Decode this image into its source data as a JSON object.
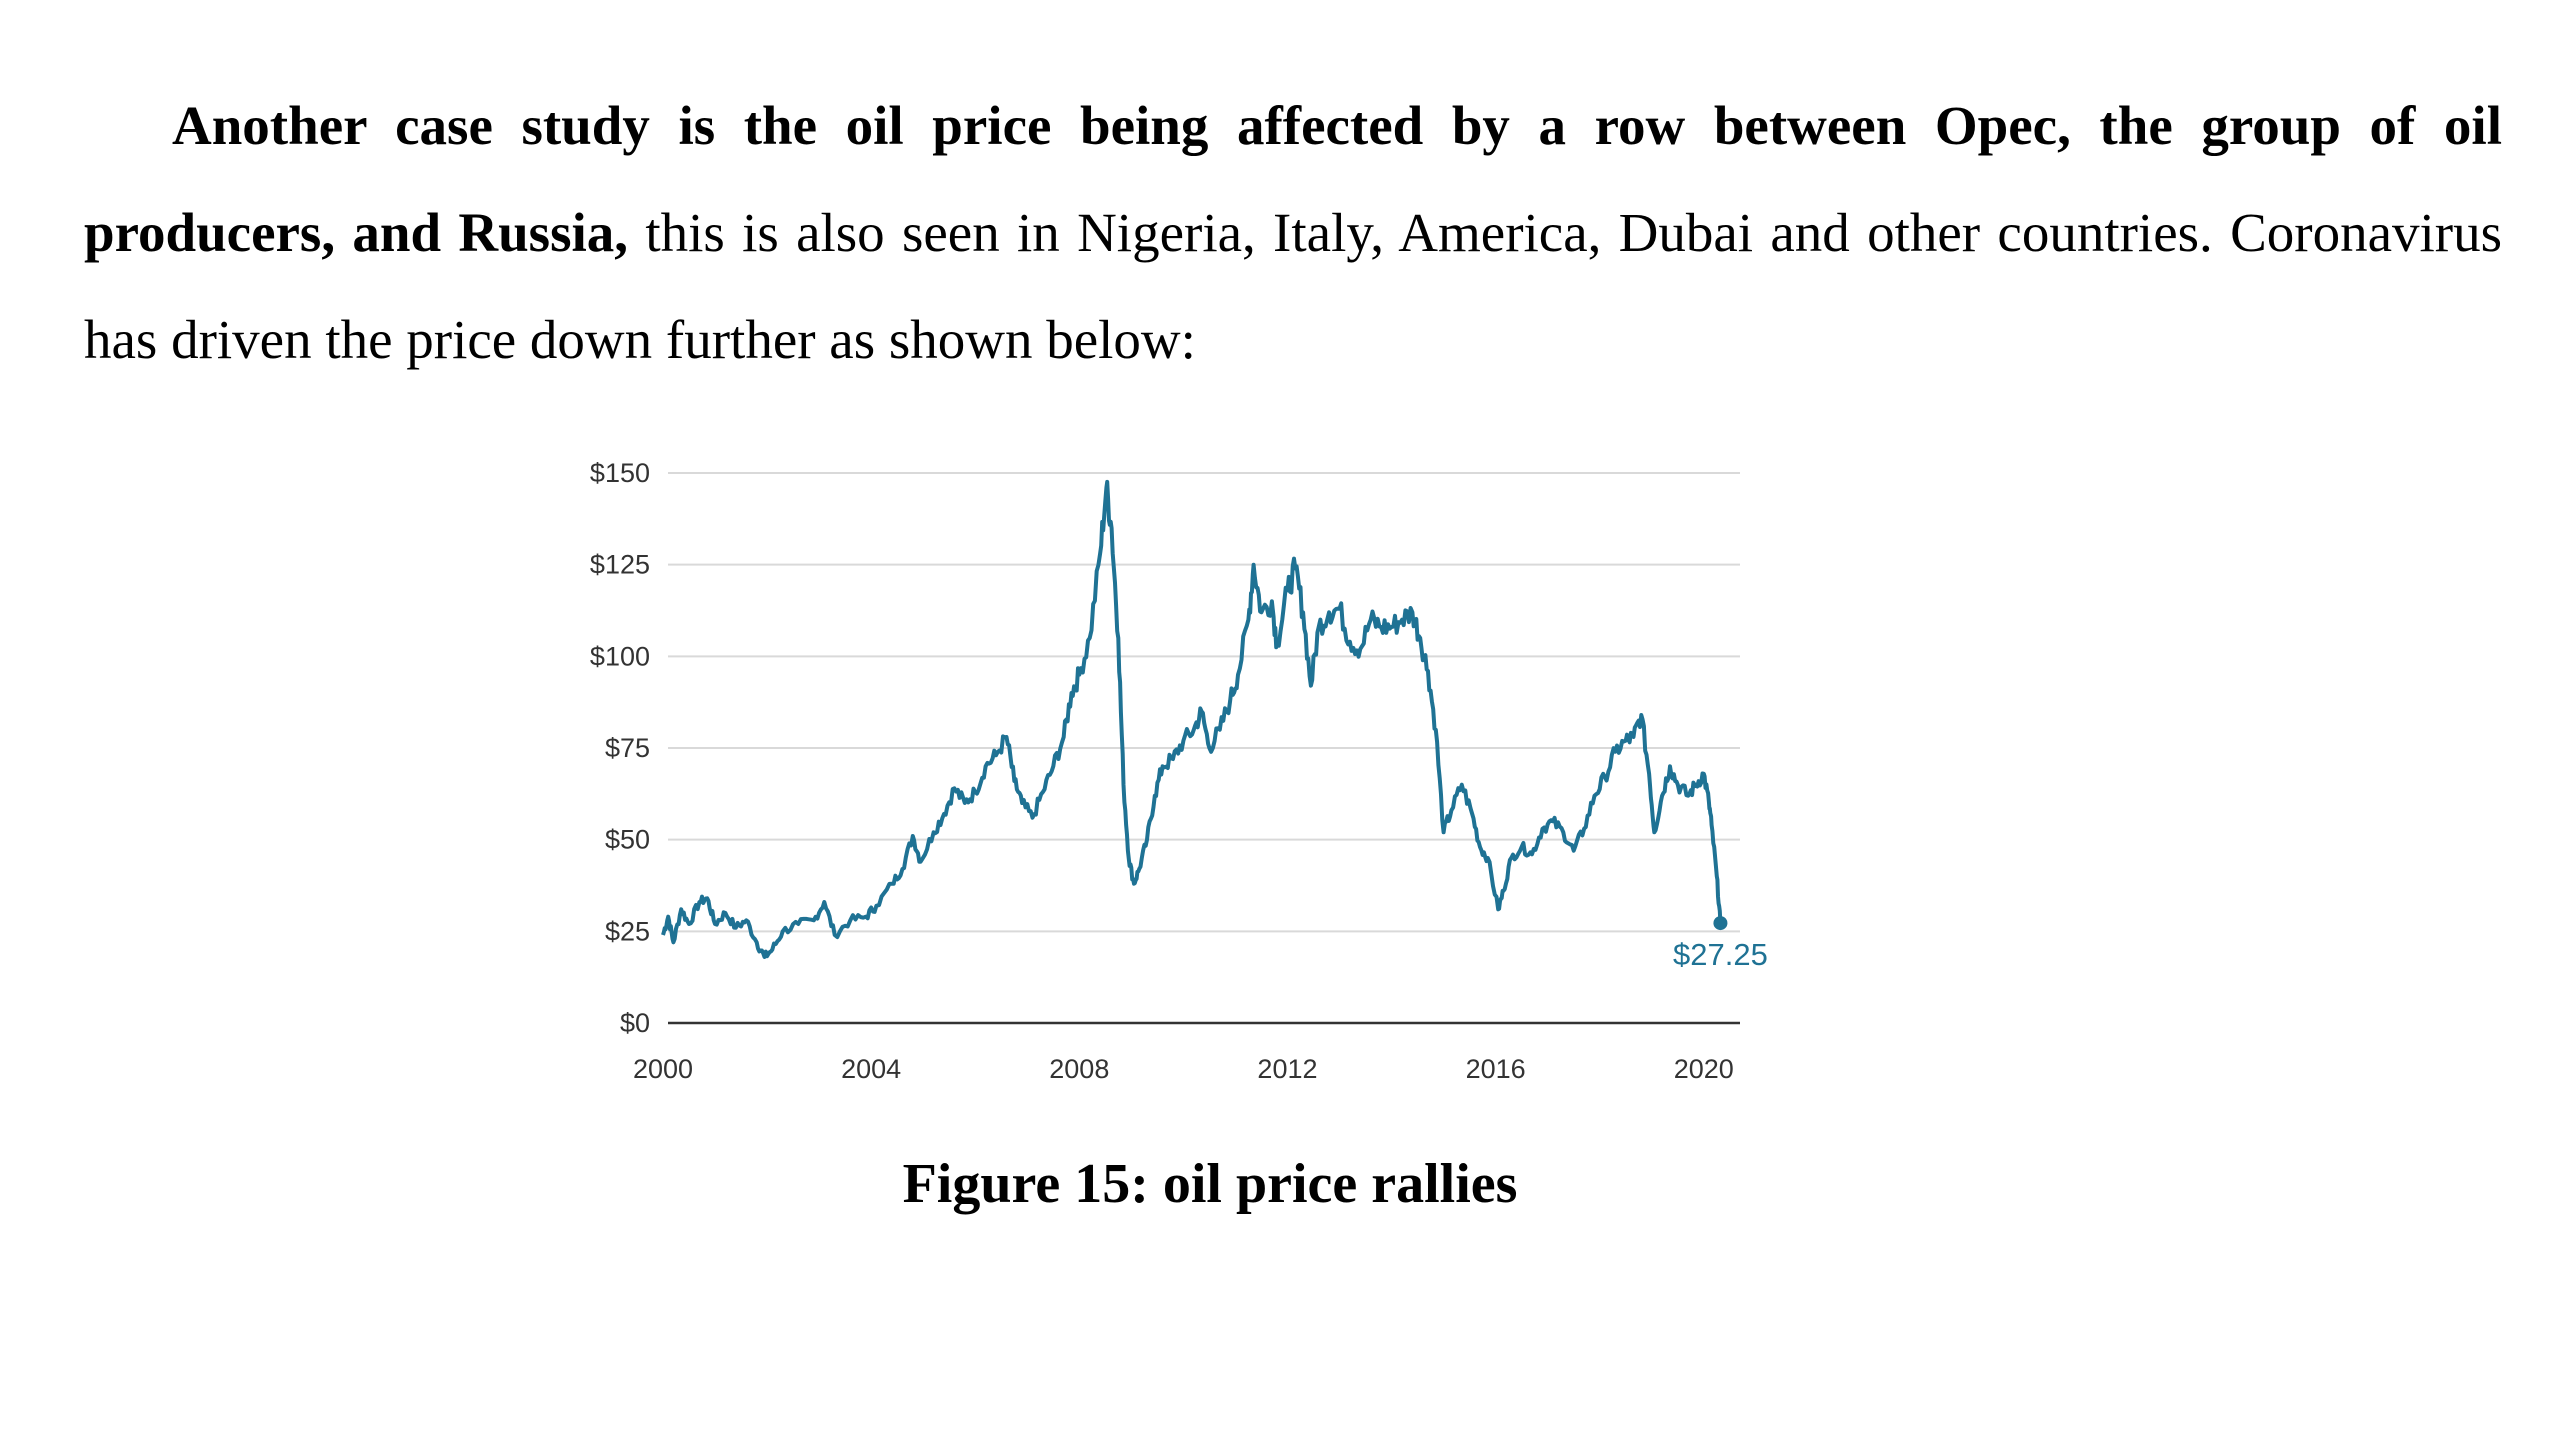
{
  "text": {
    "bold_part": "Another case study is the oil price being affected by a row between Opec, the group of oil producers, and Russia,",
    "rest_part": " this is also seen in Nigeria, Italy, America, Dubai and other countries. Coronavirus has driven the price down further as shown below:"
  },
  "caption": "Figure 15: oil price rallies",
  "chart_data": {
    "type": "line",
    "title": "",
    "xlabel": "",
    "ylabel": "",
    "xlim": [
      2000,
      2020.6
    ],
    "ylim": [
      0,
      150
    ],
    "y_ticks": [
      "$0",
      "$25",
      "$50",
      "$75",
      "$100",
      "$125",
      "$150"
    ],
    "y_tick_values": [
      0,
      25,
      50,
      75,
      100,
      125,
      150
    ],
    "x_ticks": [
      "2000",
      "2004",
      "2008",
      "2012",
      "2016",
      "2020"
    ],
    "x_tick_values": [
      2000,
      2004,
      2008,
      2012,
      2016,
      2020
    ],
    "grid": true,
    "line_color": "#1f7294",
    "end_label": "$27.25",
    "series": [
      {
        "values": [
          [
            2000.0,
            24
          ],
          [
            2000.1,
            29
          ],
          [
            2000.2,
            22
          ],
          [
            2000.35,
            31
          ],
          [
            2000.5,
            27
          ],
          [
            2000.7,
            33
          ],
          [
            2000.85,
            34
          ],
          [
            2001.0,
            27
          ],
          [
            2001.2,
            30
          ],
          [
            2001.4,
            26
          ],
          [
            2001.6,
            28
          ],
          [
            2001.8,
            22
          ],
          [
            2001.95,
            18
          ],
          [
            2002.1,
            20
          ],
          [
            2002.3,
            25
          ],
          [
            2002.6,
            27
          ],
          [
            2002.9,
            28
          ],
          [
            2003.1,
            33
          ],
          [
            2003.3,
            24
          ],
          [
            2003.6,
            28
          ],
          [
            2003.9,
            29
          ],
          [
            2004.1,
            32
          ],
          [
            2004.4,
            38
          ],
          [
            2004.6,
            42
          ],
          [
            2004.8,
            51
          ],
          [
            2004.95,
            44
          ],
          [
            2005.2,
            52
          ],
          [
            2005.4,
            57
          ],
          [
            2005.6,
            64
          ],
          [
            2005.8,
            60
          ],
          [
            2006.0,
            63
          ],
          [
            2006.2,
            70
          ],
          [
            2006.4,
            73
          ],
          [
            2006.6,
            78
          ],
          [
            2006.75,
            66
          ],
          [
            2006.9,
            60
          ],
          [
            2007.1,
            56
          ],
          [
            2007.3,
            63
          ],
          [
            2007.5,
            70
          ],
          [
            2007.7,
            78
          ],
          [
            2007.85,
            90
          ],
          [
            2008.0,
            95
          ],
          [
            2008.2,
            105
          ],
          [
            2008.4,
            128
          ],
          [
            2008.52,
            146
          ],
          [
            2008.62,
            135
          ],
          [
            2008.75,
            105
          ],
          [
            2008.85,
            65
          ],
          [
            2008.95,
            45
          ],
          [
            2009.05,
            38
          ],
          [
            2009.15,
            42
          ],
          [
            2009.3,
            50
          ],
          [
            2009.45,
            62
          ],
          [
            2009.6,
            70
          ],
          [
            2009.8,
            72
          ],
          [
            2010.0,
            77
          ],
          [
            2010.2,
            80
          ],
          [
            2010.35,
            85
          ],
          [
            2010.5,
            75
          ],
          [
            2010.7,
            80
          ],
          [
            2010.9,
            88
          ],
          [
            2011.05,
            95
          ],
          [
            2011.25,
            110
          ],
          [
            2011.35,
            125
          ],
          [
            2011.5,
            112
          ],
          [
            2011.7,
            115
          ],
          [
            2011.8,
            103
          ],
          [
            2012.0,
            118
          ],
          [
            2012.15,
            124
          ],
          [
            2012.3,
            112
          ],
          [
            2012.45,
            92
          ],
          [
            2012.6,
            108
          ],
          [
            2012.8,
            112
          ],
          [
            2013.0,
            113
          ],
          [
            2013.2,
            104
          ],
          [
            2013.4,
            102
          ],
          [
            2013.6,
            110
          ],
          [
            2013.8,
            108
          ],
          [
            2014.0,
            108
          ],
          [
            2014.2,
            110
          ],
          [
            2014.4,
            112
          ],
          [
            2014.55,
            105
          ],
          [
            2014.7,
            96
          ],
          [
            2014.85,
            80
          ],
          [
            2015.0,
            52
          ],
          [
            2015.15,
            58
          ],
          [
            2015.35,
            65
          ],
          [
            2015.55,
            57
          ],
          [
            2015.7,
            48
          ],
          [
            2015.85,
            45
          ],
          [
            2016.05,
            31
          ],
          [
            2016.15,
            36
          ],
          [
            2016.3,
            45
          ],
          [
            2016.5,
            48
          ],
          [
            2016.7,
            46
          ],
          [
            2016.9,
            53
          ],
          [
            2017.1,
            55
          ],
          [
            2017.3,
            52
          ],
          [
            2017.5,
            47
          ],
          [
            2017.7,
            53
          ],
          [
            2017.9,
            62
          ],
          [
            2018.1,
            67
          ],
          [
            2018.3,
            74
          ],
          [
            2018.5,
            77
          ],
          [
            2018.65,
            78
          ],
          [
            2018.8,
            84
          ],
          [
            2018.95,
            68
          ],
          [
            2019.05,
            52
          ],
          [
            2019.2,
            62
          ],
          [
            2019.35,
            70
          ],
          [
            2019.5,
            65
          ],
          [
            2019.7,
            62
          ],
          [
            2019.85,
            65
          ],
          [
            2020.0,
            68
          ],
          [
            2020.1,
            60
          ],
          [
            2020.15,
            54
          ],
          [
            2020.25,
            40
          ],
          [
            2020.32,
            27.25
          ]
        ]
      }
    ]
  }
}
